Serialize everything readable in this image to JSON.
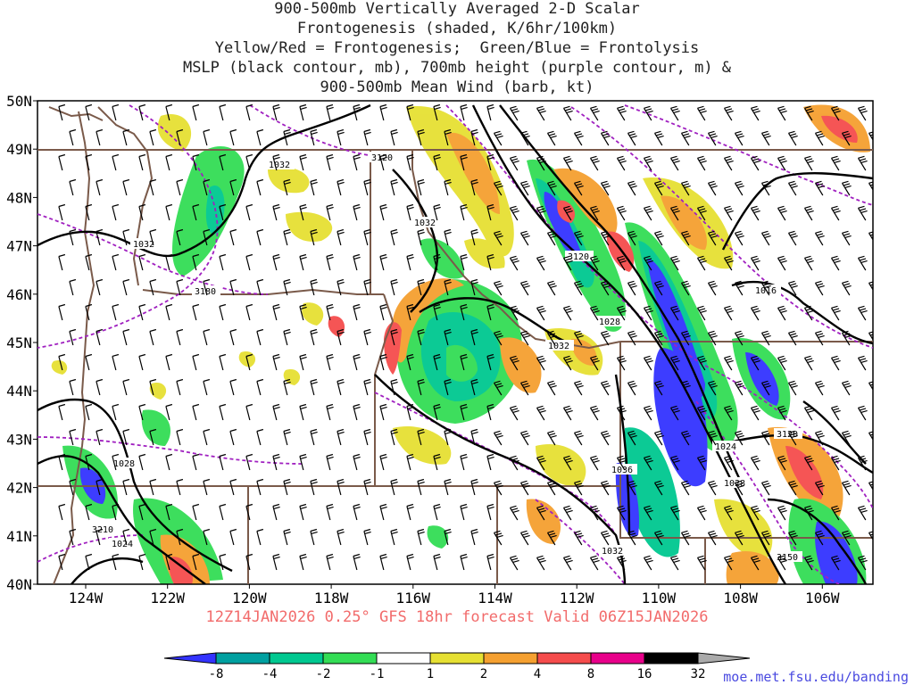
{
  "title_lines": [
    "900-500mb Vertically Averaged 2-D Scalar",
    "Frontogenesis (shaded, K/6hr/100km)",
    "Yellow/Red = Frontogenesis;  Green/Blue = Frontolysis",
    "MSLP (black contour, mb), 700mb height (purple contour, m) &",
    "900-500mb Mean Wind (barb, kt)"
  ],
  "lat_labels": [
    "50N",
    "49N",
    "48N",
    "47N",
    "46N",
    "45N",
    "44N",
    "43N",
    "42N",
    "41N",
    "40N"
  ],
  "lon_labels": [
    "124W",
    "122W",
    "120W",
    "118W",
    "116W",
    "114W",
    "112W",
    "110W",
    "108W",
    "106W"
  ],
  "valid_text": "12Z14JAN2026 0.25° GFS 18hr forecast Valid 06Z15JAN2026",
  "credit": "moe.met.fsu.edu/banding",
  "colorbar": {
    "colors": [
      "#3333ff",
      "#00a0a0",
      "#00c890",
      "#33dd55",
      "#ffffff",
      "#e6e033",
      "#f5a030",
      "#f54c4c",
      "#e8008a",
      "#000000",
      "#aaaaaa"
    ],
    "labels": [
      "-8",
      "-4",
      "-2",
      "-1",
      "1",
      "2",
      "4",
      "8",
      "16",
      "32"
    ]
  },
  "contour_labels": {
    "mslp": [
      "1032",
      "1032",
      "1032",
      "1032",
      "1028",
      "1028",
      "1024",
      "1024",
      "1028",
      "1016",
      "1036",
      "1032",
      "1028"
    ],
    "height_700mb": [
      "3120",
      "3120",
      "3180",
      "3120",
      "3150",
      "3210"
    ]
  },
  "colors": {
    "state_lines": "#7a5a4a",
    "mslp": "#000000",
    "height": "#a020c0",
    "label": "#f26b6b"
  }
}
